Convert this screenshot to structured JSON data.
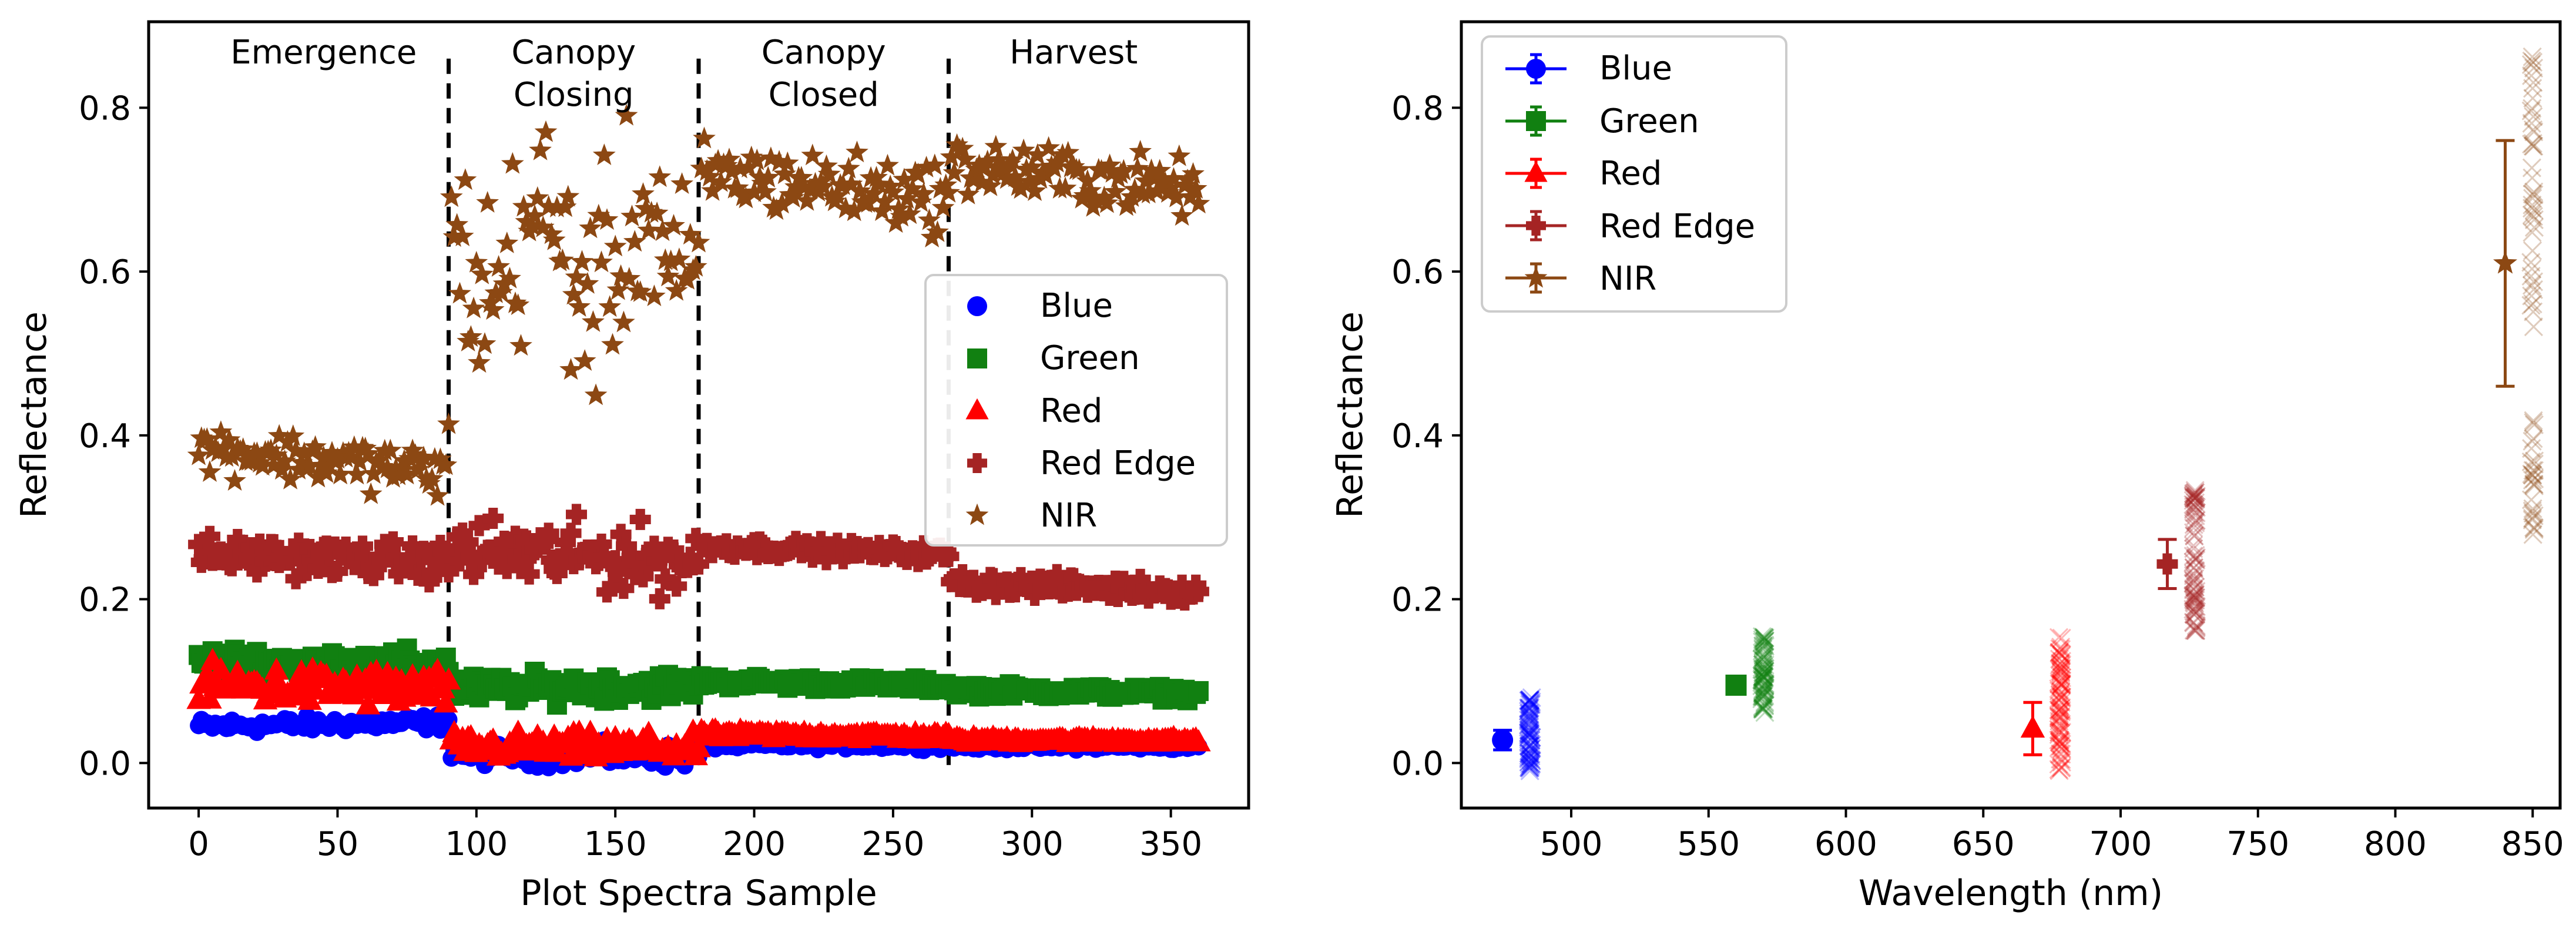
{
  "colors": {
    "blue": "#0000ff",
    "green": "#118011",
    "red": "#ff0000",
    "red_edge": "#a52424",
    "nir": "#8c4813"
  },
  "chart_data": [
    {
      "type": "scatter",
      "xlabel": "Plot Spectra Sample",
      "ylabel": "Reflectance",
      "xlim": [
        -18,
        378
      ],
      "ylim": [
        -0.055,
        0.905
      ],
      "xticks": [
        0,
        50,
        100,
        150,
        200,
        250,
        300,
        350
      ],
      "yticks": [
        0.0,
        0.2,
        0.4,
        0.6,
        0.8
      ],
      "xtick_labels": [
        "0",
        "50",
        "100",
        "150",
        "200",
        "250",
        "300",
        "350"
      ],
      "ytick_labels": [
        "0.0",
        "0.2",
        "0.4",
        "0.6",
        "0.8"
      ],
      "phase_boundaries": [
        90,
        180,
        270
      ],
      "phases": [
        {
          "label1": "Emergence",
          "label2": ""
        },
        {
          "label1": "Canopy",
          "label2": "Closing"
        },
        {
          "label1": "Canopy",
          "label2": "Closed"
        },
        {
          "label1": "Harvest",
          "label2": ""
        }
      ],
      "legend_location": "center-right",
      "series": [
        {
          "name": "Blue",
          "marker": "circle",
          "trend": {
            "x": [
              0,
              90,
              91,
              180,
              181,
              270,
              271,
              360
            ],
            "y": [
              0.045,
              0.05,
              0.012,
              0.008,
              0.022,
              0.022,
              0.02,
              0.02
            ]
          },
          "spread": [
            0.008,
            0.012,
            0.004,
            0.003
          ]
        },
        {
          "name": "Green",
          "marker": "square",
          "trend": {
            "x": [
              0,
              90,
              91,
              180,
              181,
              270,
              271,
              360
            ],
            "y": [
              0.125,
              0.12,
              0.09,
              0.095,
              0.1,
              0.095,
              0.09,
              0.085
            ]
          },
          "spread": [
            0.014,
            0.014,
            0.006,
            0.006
          ]
        },
        {
          "name": "Red",
          "marker": "triangle",
          "trend": {
            "x": [
              0,
              90,
              91,
              180,
              181,
              270,
              271,
              360
            ],
            "y": [
              0.095,
              0.09,
              0.02,
              0.018,
              0.035,
              0.032,
              0.028,
              0.027
            ]
          },
          "spread": [
            0.02,
            0.014,
            0.004,
            0.003
          ]
        },
        {
          "name": "Red Edge",
          "marker": "plus",
          "trend": {
            "x": [
              0,
              90,
              91,
              180,
              181,
              270,
              271,
              360
            ],
            "y": [
              0.255,
              0.245,
              0.26,
              0.245,
              0.265,
              0.255,
              0.22,
              0.21
            ]
          },
          "spread": [
            0.018,
            0.035,
            0.008,
            0.01
          ]
        },
        {
          "name": "NIR",
          "marker": "star",
          "trend": {
            "x": [
              0,
              90,
              91,
              180,
              181,
              270,
              271,
              360
            ],
            "y": [
              0.385,
              0.355,
              0.62,
              0.62,
              0.72,
              0.69,
              0.73,
              0.7
            ]
          },
          "spread": [
            0.025,
            0.11,
            0.035,
            0.03
          ]
        }
      ]
    },
    {
      "type": "errorbar",
      "xlabel": "Wavelength (nm)",
      "ylabel": "Reflectance",
      "xlim": [
        460,
        860
      ],
      "ylim": [
        -0.055,
        0.905
      ],
      "xticks": [
        500,
        550,
        600,
        650,
        700,
        750,
        800,
        850
      ],
      "yticks": [
        0.0,
        0.2,
        0.4,
        0.6,
        0.8
      ],
      "xtick_labels": [
        "500",
        "550",
        "600",
        "650",
        "700",
        "750",
        "800",
        "850"
      ],
      "ytick_labels": [
        "0.0",
        "0.2",
        "0.4",
        "0.6",
        "0.8"
      ],
      "legend_location": "upper-left",
      "series": [
        {
          "name": "Blue",
          "marker": "circle",
          "wavelength": 475,
          "mean": 0.028,
          "err": 0.012,
          "cloud_x": 485,
          "cloud_range": [
            -0.01,
            0.08
          ]
        },
        {
          "name": "Green",
          "marker": "square",
          "wavelength": 560,
          "mean": 0.095,
          "err": 0.01,
          "cloud_x": 570,
          "cloud_range": [
            0.06,
            0.155
          ]
        },
        {
          "name": "Red",
          "marker": "triangle",
          "wavelength": 668,
          "mean": 0.042,
          "err": 0.032,
          "cloud_x": 678,
          "cloud_range": [
            -0.01,
            0.155
          ]
        },
        {
          "name": "Red Edge",
          "marker": "plus",
          "wavelength": 717,
          "mean": 0.243,
          "err": 0.03,
          "cloud_x": 727,
          "cloud_range": [
            0.16,
            0.335
          ]
        },
        {
          "name": "NIR",
          "marker": "star",
          "wavelength": 840,
          "mean": 0.61,
          "err": 0.15,
          "cloud_x": 850,
          "cloud_range": [
            0.27,
            0.865
          ],
          "cloud_gap": [
            0.42,
            0.53
          ]
        }
      ]
    }
  ]
}
